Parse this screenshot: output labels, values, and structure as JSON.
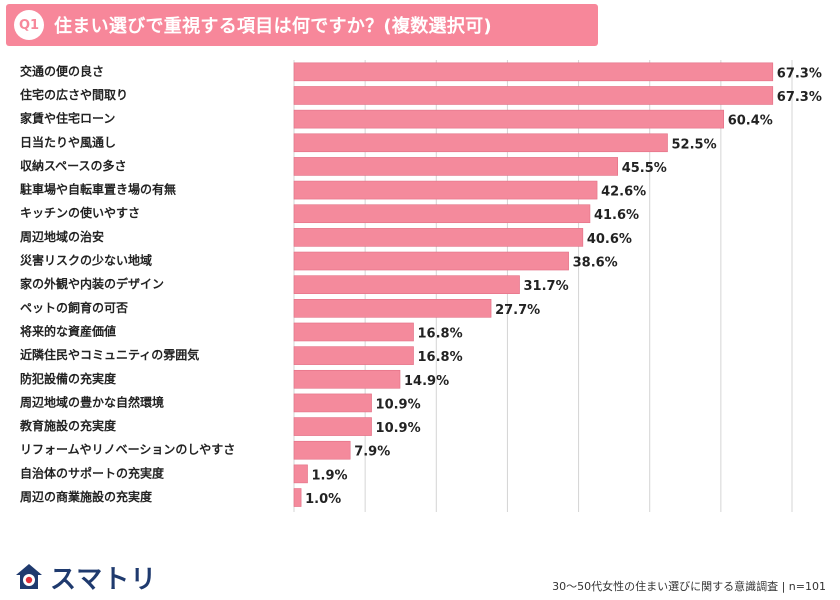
{
  "header": {
    "badge": "Q1",
    "title": "住まい選びで重視する項目は何ですか？(複数選択可)"
  },
  "colors": {
    "accent": "#f7879a",
    "bar": "#f48a9c",
    "bar_border": "#e26e84",
    "grid": "#d4d4d4",
    "logo_navy": "#1f3a6e",
    "logo_red": "#e0303a"
  },
  "chart_data": {
    "type": "bar",
    "orientation": "horizontal",
    "unit": "%",
    "categories": [
      "交通の便の良さ",
      "住宅の広さや間取り",
      "家賃や住宅ローン",
      "日当たりや風通し",
      "収納スペースの多さ",
      "駐車場や自転車置き場の有無",
      "キッチンの使いやすさ",
      "周辺地域の治安",
      "災害リスクの少ない地域",
      "家の外観や内装のデザイン",
      "ペットの飼育の可否",
      "将来的な資産価値",
      "近隣住民やコミュニティの雰囲気",
      "防犯設備の充実度",
      "周辺地域の豊かな自然環境",
      "教育施設の充実度",
      "リフォームやリノベーションのしやすさ",
      "自治体のサポートの充実度",
      "周辺の商業施設の充実度"
    ],
    "values": [
      67.3,
      67.3,
      60.4,
      52.5,
      45.5,
      42.6,
      41.6,
      40.6,
      38.6,
      31.7,
      27.7,
      16.8,
      16.8,
      14.9,
      10.9,
      10.9,
      7.9,
      1.9,
      1.0
    ],
    "value_labels": [
      "67.3%",
      "67.3%",
      "60.4%",
      "52.5%",
      "45.5%",
      "42.6%",
      "41.6%",
      "40.6%",
      "38.6%",
      "31.7%",
      "27.7%",
      "16.8%",
      "16.8%",
      "14.9%",
      "10.9%",
      "10.9%",
      "7.9%",
      "1.9%",
      "1.0%"
    ],
    "xlim": [
      0,
      70
    ],
    "grid": true
  },
  "footer": {
    "logo_text": "スマトリ",
    "source": "30〜50代女性の住まい選びに関する意識調査 | n=101"
  }
}
